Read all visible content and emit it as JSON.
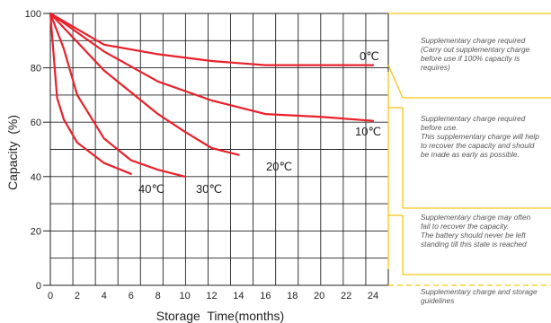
{
  "chart_data": {
    "type": "line",
    "title": "",
    "xlabel": "Storage  Time(months)",
    "ylabel": "Capacity  (%)",
    "xlim": [
      0,
      24
    ],
    "ylim": [
      0,
      100
    ],
    "grid": true,
    "xticks": [
      "0",
      "2",
      "4",
      "6",
      "8",
      "10",
      "12",
      "14",
      "16",
      "18",
      "20",
      "22",
      "24"
    ],
    "yticks": [
      "0",
      "20",
      "40",
      "60",
      "80",
      "100"
    ],
    "series": [
      {
        "name": "0℃",
        "x": [
          0,
          4,
          8,
          12,
          16,
          20,
          24
        ],
        "y": [
          100,
          88.5,
          85,
          82.5,
          81,
          81,
          81
        ]
      },
      {
        "name": "10℃",
        "x": [
          0,
          4,
          8,
          12,
          16,
          20,
          24
        ],
        "y": [
          100,
          86,
          75,
          68,
          63,
          62,
          60.5
        ]
      },
      {
        "name": "20℃",
        "x": [
          0,
          4,
          8,
          10,
          12,
          14
        ],
        "y": [
          100,
          79,
          63,
          56.5,
          50.5,
          48
        ]
      },
      {
        "name": "30℃",
        "x": [
          0,
          1,
          2,
          4,
          6,
          8,
          10
        ],
        "y": [
          100,
          87,
          70,
          54,
          46,
          42.5,
          40
        ]
      },
      {
        "name": "40℃",
        "x": [
          0,
          0.5,
          1,
          2,
          4,
          6
        ],
        "y": [
          100,
          69,
          61,
          52.5,
          45,
          41
        ]
      }
    ]
  },
  "notes": [
    {
      "lines": [
        "Supplementary charge required",
        "(Carry out supplementary charge",
        "before use if 100% capacity is",
        "requires)"
      ]
    },
    {
      "lines": [
        "Supplementary charge required",
        "before use.",
        "This supplementary charge will help",
        "to recover the capacity and should",
        "be made  as early as possible."
      ]
    },
    {
      "lines": [
        "Supplementary charge may often",
        "fail to recover the capacity.",
        "The battery should never be left",
        "standing till this state is reached"
      ]
    },
    {
      "lines": [
        "Supplementary charge and storage",
        "guidelines"
      ]
    }
  ],
  "colors": {
    "series": "#e8212b",
    "bracket": "#f5c518",
    "grid": "#222222"
  }
}
